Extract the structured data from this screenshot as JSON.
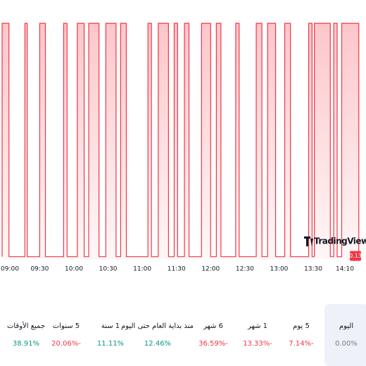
{
  "chart_data": {
    "type": "line",
    "brand": "TradingView",
    "x": [
      537,
      537,
      543,
      543,
      557,
      557,
      559,
      559,
      570,
      570,
      575,
      575,
      591,
      591,
      594,
      594,
      603,
      603,
      609,
      609,
      613,
      613,
      622,
      622,
      628,
      628,
      637,
      637,
      641,
      641,
      646,
      646,
      665,
      665,
      668,
      668,
      674,
      674,
      683,
      683,
      688,
      688,
      691,
      691,
      697,
      697,
      701,
      701,
      712,
      712,
      720,
      720,
      725,
      725,
      729,
      729,
      742,
      742,
      745,
      745,
      760,
      760,
      765,
      765,
      770,
      770,
      777,
      777,
      785,
      785,
      790,
      790,
      806,
      806,
      809,
      809,
      811,
      811,
      825,
      825,
      828,
      828,
      831,
      831,
      835,
      835,
      850,
      850
    ],
    "series": [
      {
        "color": "#f23645",
        "values": [
          0.13,
          0.14,
          0.14,
          0.13,
          0.13,
          0.14,
          0.14,
          0.13,
          0.13,
          0.14,
          0.14,
          0.13,
          0.13,
          0.14,
          0.14,
          0.13,
          0.13,
          0.14,
          0.14,
          0.13,
          0.13,
          0.14,
          0.14,
          0.13,
          0.13,
          0.14,
          0.14,
          0.13,
          0.13,
          0.14,
          0.14,
          0.13,
          0.13,
          0.14,
          0.14,
          0.13,
          0.13,
          0.14,
          0.14,
          0.13,
          0.13,
          0.14,
          0.14,
          0.13,
          0.13,
          0.14,
          0.14,
          0.13,
          0.13,
          0.14,
          0.14,
          0.13,
          0.13,
          0.14,
          0.14,
          0.13,
          0.13,
          0.14,
          0.14,
          0.13,
          0.13,
          0.14,
          0.14,
          0.13,
          0.13,
          0.14,
          0.14,
          0.13,
          0.13,
          0.14,
          0.14,
          0.13,
          0.13,
          0.14,
          0.14,
          0.13,
          0.13,
          0.14,
          0.14,
          0.13,
          0.13,
          0.14,
          0.14,
          0.13,
          0.13,
          0.14,
          0.14,
          0.13
        ]
      }
    ],
    "xlim": [
      537,
      852
    ],
    "xticks": [
      {
        "value": 540,
        "label": "09:00"
      },
      {
        "value": 570,
        "label": "09:30"
      },
      {
        "value": 600,
        "label": "10:00"
      },
      {
        "value": 630,
        "label": "10:30"
      },
      {
        "value": 660,
        "label": "11:00"
      },
      {
        "value": 690,
        "label": "11:30"
      },
      {
        "value": 720,
        "label": "12:00"
      },
      {
        "value": 750,
        "label": "12:30"
      },
      {
        "value": 780,
        "label": "13:00"
      },
      {
        "value": 810,
        "label": "13:30"
      },
      {
        "value": 850,
        "label": "14:10"
      }
    ],
    "ylim": [
      0.1299,
      0.141
    ],
    "yticks": [
      0.13
    ]
  },
  "periods": [
    {
      "label": "اليوم",
      "change": "0.00%",
      "color": "#787b86",
      "selected": true
    },
    {
      "label": "5 يوم",
      "change": "7.14%-",
      "color": "#f23645"
    },
    {
      "label": "1 شهر",
      "change": "13.33%-",
      "color": "#f23645"
    },
    {
      "label": "6 شهر",
      "change": "36.59%-",
      "color": "#f23645"
    },
    {
      "label": "منذ بداية العام حتى اليوم",
      "change": "12.46%",
      "color": "#089981"
    },
    {
      "label": "1 سنة",
      "change": "11.11%",
      "color": "#089981"
    },
    {
      "label": "5 سنوات",
      "change": "20.06%-",
      "color": "#f23645"
    },
    {
      "label": "جميع الأوقات",
      "change": "38.91%",
      "color": "#089981"
    }
  ]
}
